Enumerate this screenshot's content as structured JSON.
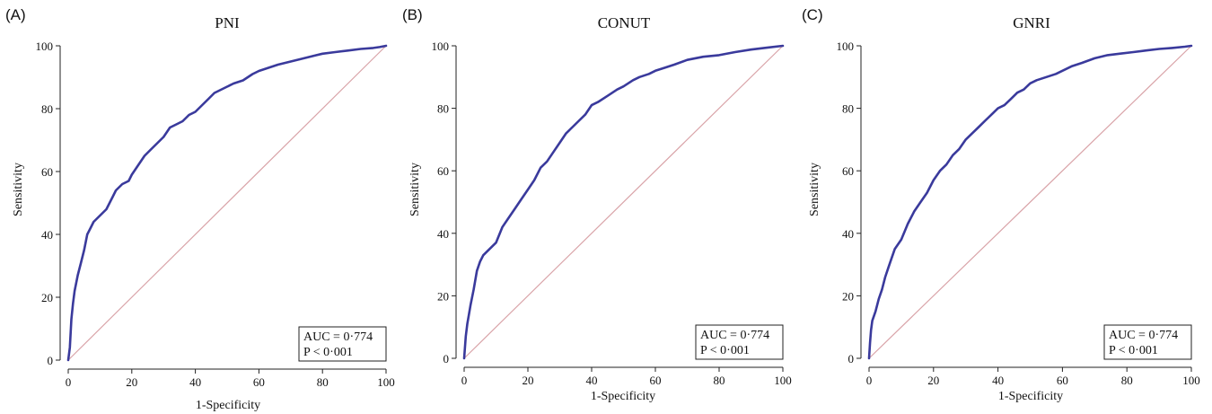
{
  "chart_data": [
    {
      "type": "line",
      "panel_label": "(A)",
      "title": "PNI",
      "xlabel": "1-Specificity",
      "ylabel": "Sensitivity",
      "xlim": [
        0,
        100
      ],
      "ylim": [
        0,
        100
      ],
      "xticks": [
        "0",
        "20",
        "40",
        "60",
        "80",
        "100"
      ],
      "yticks": [
        "0",
        "20",
        "40",
        "60",
        "80",
        "100"
      ],
      "grid": false,
      "stats": [
        "AUC = 0·774",
        "P < 0·001"
      ],
      "colors": {
        "curve": "#3a3a9c",
        "reference": "#d9a3a8"
      },
      "series": [
        {
          "x": [
            0,
            0.5,
            1,
            1.5,
            2,
            3,
            4,
            5,
            6,
            7,
            8,
            10,
            12,
            14,
            15,
            17,
            19,
            20,
            22,
            24,
            26,
            28,
            30,
            32,
            34,
            36,
            38,
            40,
            42,
            44,
            46,
            48,
            50,
            52,
            55,
            58,
            60,
            63,
            66,
            70,
            74,
            78,
            80,
            84,
            88,
            92,
            96,
            98,
            100
          ],
          "y": [
            0,
            4,
            13,
            18,
            22,
            27,
            31,
            35,
            40,
            42,
            44,
            46,
            48,
            52,
            54,
            56,
            57,
            59,
            62,
            65,
            67,
            69,
            71,
            74,
            75,
            76,
            78,
            79,
            81,
            83,
            85,
            86,
            87,
            88,
            89,
            91,
            92,
            93,
            94,
            95,
            96,
            97,
            97.5,
            98,
            98.5,
            99,
            99.3,
            99.6,
            100
          ]
        }
      ]
    },
    {
      "type": "line",
      "panel_label": "(B)",
      "title": "CONUT",
      "xlabel": "1-Specificity",
      "ylabel": "Sensitivity",
      "xlim": [
        0,
        100
      ],
      "ylim": [
        0,
        100
      ],
      "xticks": [
        "0",
        "20",
        "40",
        "60",
        "80",
        "100"
      ],
      "yticks": [
        "0",
        "20",
        "40",
        "60",
        "80",
        "100"
      ],
      "grid": false,
      "stats": [
        "AUC = 0·774",
        "P < 0·001"
      ],
      "colors": {
        "curve": "#3a3a9c",
        "reference": "#d9a3a8"
      },
      "series": [
        {
          "x": [
            0,
            0.5,
            1,
            1.5,
            2,
            3,
            4,
            5,
            6,
            8,
            10,
            12,
            14,
            16,
            18,
            20,
            22,
            24,
            26,
            28,
            30,
            32,
            34,
            36,
            38,
            40,
            42,
            45,
            48,
            50,
            53,
            55,
            58,
            60,
            63,
            66,
            70,
            75,
            80,
            85,
            90,
            95,
            100
          ],
          "y": [
            0,
            7,
            11,
            14,
            17,
            22,
            28,
            31,
            33,
            35,
            37,
            42,
            45,
            48,
            51,
            54,
            57,
            61,
            63,
            66,
            69,
            72,
            74,
            76,
            78,
            81,
            82,
            84,
            86,
            87,
            89,
            90,
            91,
            92,
            93,
            94,
            95.5,
            96.5,
            97,
            98,
            98.8,
            99.4,
            100
          ]
        }
      ]
    },
    {
      "type": "line",
      "panel_label": "(C)",
      "title": "GNRI",
      "xlabel": "1-Specificity",
      "ylabel": "Sensitivity",
      "xlim": [
        0,
        100
      ],
      "ylim": [
        0,
        100
      ],
      "xticks": [
        "0",
        "20",
        "40",
        "60",
        "80",
        "100"
      ],
      "yticks": [
        "0",
        "20",
        "40",
        "60",
        "80",
        "100"
      ],
      "grid": false,
      "stats": [
        "AUC = 0·774",
        "P < 0·001"
      ],
      "colors": {
        "curve": "#3a3a9c",
        "reference": "#d9a3a8"
      },
      "series": [
        {
          "x": [
            0,
            0.3,
            0.6,
            1,
            2,
            3,
            4,
            5,
            6,
            7,
            8,
            10,
            12,
            14,
            16,
            18,
            20,
            22,
            24,
            26,
            28,
            30,
            32,
            34,
            36,
            38,
            40,
            42,
            44,
            46,
            48,
            50,
            52,
            55,
            58,
            60,
            63,
            66,
            70,
            74,
            78,
            82,
            86,
            90,
            94,
            98,
            100
          ],
          "y": [
            0,
            5,
            9,
            12,
            15,
            19,
            22,
            26,
            29,
            32,
            35,
            38,
            43,
            47,
            50,
            53,
            57,
            60,
            62,
            65,
            67,
            70,
            72,
            74,
            76,
            78,
            80,
            81,
            83,
            85,
            86,
            88,
            89,
            90,
            91,
            92,
            93.5,
            94.5,
            96,
            97,
            97.5,
            98,
            98.5,
            99,
            99.3,
            99.7,
            100
          ]
        }
      ]
    }
  ]
}
